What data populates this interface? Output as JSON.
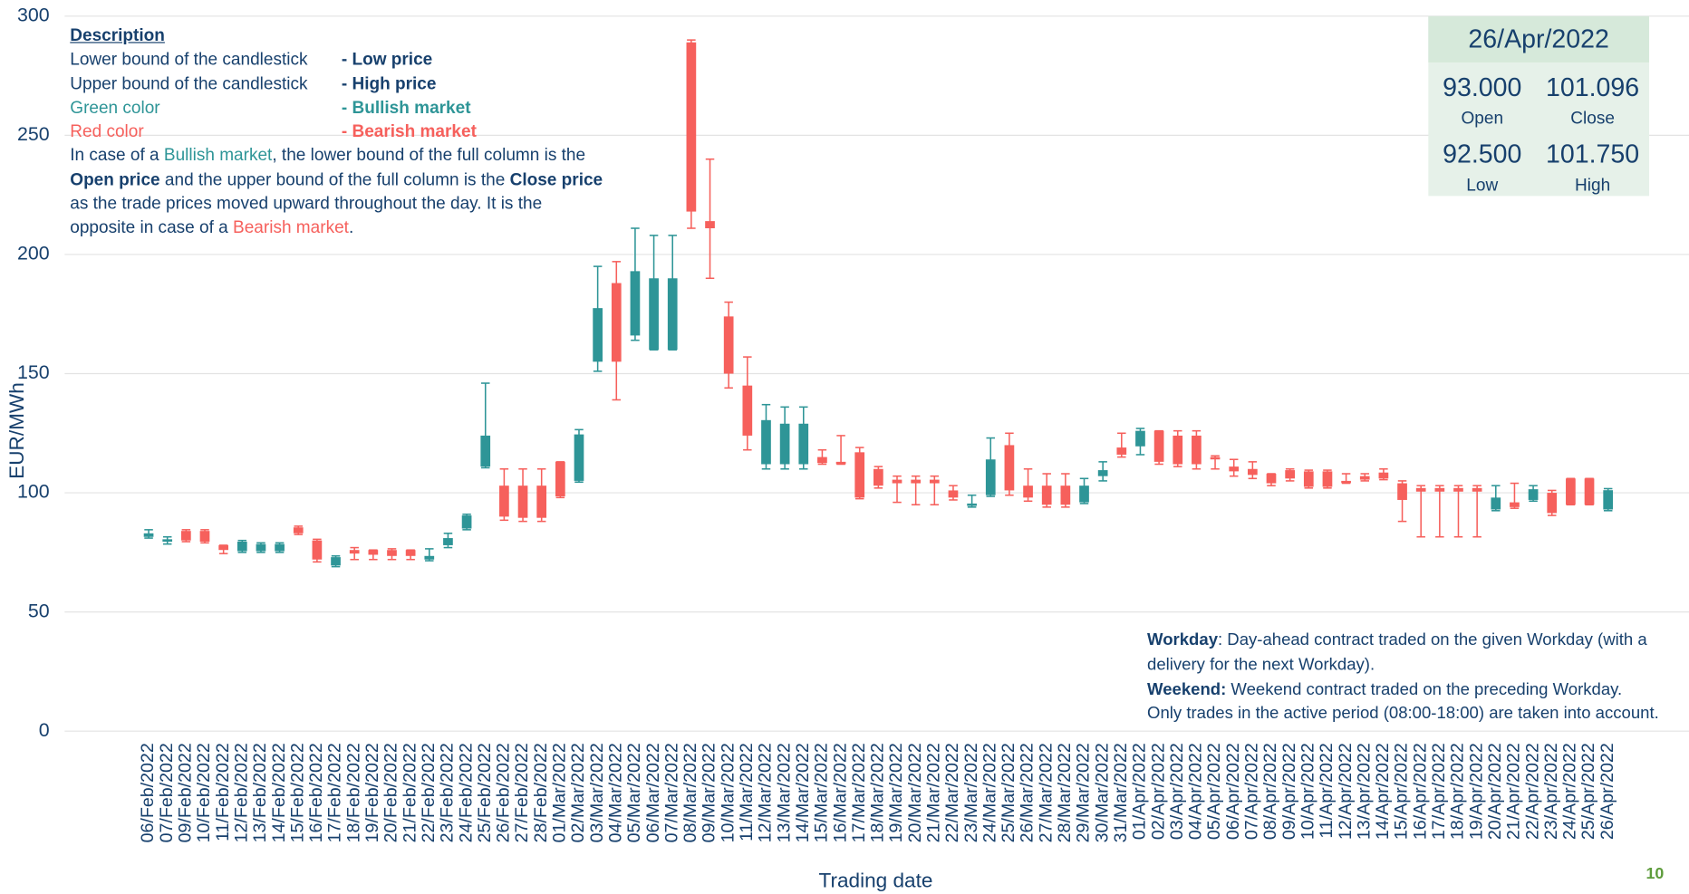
{
  "chart_data": {
    "type": "candlestick",
    "ylabel": "EUR/MWh",
    "xlabel": "Trading date",
    "ylim": [
      0,
      300
    ],
    "yticks": [
      0,
      50,
      100,
      150,
      200,
      250,
      300
    ],
    "grid": true,
    "up_color": "#2e9597",
    "down_color": "#f6605c",
    "x": [
      "06/Feb/2022",
      "07/Feb/2022",
      "09/Feb/2022",
      "10/Feb/2022",
      "11/Feb/2022",
      "12/Feb/2022",
      "13/Feb/2022",
      "14/Feb/2022",
      "15/Feb/2022",
      "16/Feb/2022",
      "17/Feb/2022",
      "18/Feb/2022",
      "19/Feb/2022",
      "20/Feb/2022",
      "21/Feb/2022",
      "22/Feb/2022",
      "23/Feb/2022",
      "24/Feb/2022",
      "25/Feb/2022",
      "26/Feb/2022",
      "27/Feb/2022",
      "28/Feb/2022",
      "01/Mar/2022",
      "02/Mar/2022",
      "03/Mar/2022",
      "04/Mar/2022",
      "05/Mar/2022",
      "06/Mar/2022",
      "07/Mar/2022",
      "08/Mar/2022",
      "09/Mar/2022",
      "10/Mar/2022",
      "11/Mar/2022",
      "12/Mar/2022",
      "13/Mar/2022",
      "14/Mar/2022",
      "15/Mar/2022",
      "16/Mar/2022",
      "17/Mar/2022",
      "18/Mar/2022",
      "19/Mar/2022",
      "20/Mar/2022",
      "21/Mar/2022",
      "22/Mar/2022",
      "23/Mar/2022",
      "24/Mar/2022",
      "25/Mar/2022",
      "26/Mar/2022",
      "27/Mar/2022",
      "28/Mar/2022",
      "29/Mar/2022",
      "30/Mar/2022",
      "31/Mar/2022",
      "01/Apr/2022",
      "02/Apr/2022",
      "03/Apr/2022",
      "04/Apr/2022",
      "05/Apr/2022",
      "06/Apr/2022",
      "07/Apr/2022",
      "08/Apr/2022",
      "09/Apr/2022",
      "10/Apr/2022",
      "11/Apr/2022",
      "12/Apr/2022",
      "13/Apr/2022",
      "14/Apr/2022",
      "15/Apr/2022",
      "16/Apr/2022",
      "17/Apr/2022",
      "18/Apr/2022",
      "19/Apr/2022",
      "20/Apr/2022",
      "21/Apr/2022",
      "22/Apr/2022",
      "23/Apr/2022",
      "24/Apr/2022",
      "25/Apr/2022",
      "26/Apr/2022"
    ],
    "open": [
      81.5,
      79.5,
      84,
      84,
      78,
      75.5,
      75.5,
      75.5,
      85.5,
      80,
      69.5,
      76,
      76,
      76,
      76,
      72,
      78,
      85,
      111,
      103,
      103,
      103,
      113,
      105,
      155,
      188,
      166,
      160,
      160,
      289,
      214,
      174,
      145,
      112,
      112,
      112,
      115,
      113,
      117,
      110,
      105.5,
      105.5,
      105.5,
      101,
      94.5,
      99,
      120,
      103,
      103,
      103,
      96,
      107,
      119,
      119.5,
      126,
      124,
      124,
      115,
      111,
      110,
      108,
      109.5,
      109,
      109,
      105,
      107,
      108.5,
      104,
      102,
      102,
      102,
      102,
      93,
      96,
      97,
      100,
      106,
      106,
      93
    ],
    "high": [
      84.5,
      81.5,
      84.5,
      84.5,
      78,
      80,
      79,
      79,
      86,
      80.5,
      73.5,
      77,
      76,
      76.5,
      76,
      76.5,
      83,
      91,
      146,
      110,
      110,
      110,
      113,
      126.5,
      195,
      197,
      211,
      208,
      208,
      290,
      240,
      180,
      157,
      137,
      136,
      136,
      118,
      124,
      119,
      111,
      107,
      107,
      107,
      103,
      99,
      123,
      125,
      110,
      108,
      108,
      106,
      113,
      125,
      127,
      126,
      126,
      126,
      115.5,
      114,
      113,
      108,
      110,
      109.5,
      109.5,
      108,
      108,
      110,
      105,
      103,
      103,
      103,
      103,
      103,
      104,
      103,
      101,
      106,
      106,
      101.75
    ],
    "low": [
      81,
      78.5,
      79.5,
      79,
      74.5,
      75,
      75,
      75,
      82.5,
      71,
      69,
      72,
      72,
      72,
      72,
      71.5,
      77,
      84.5,
      110.5,
      88.5,
      88,
      88,
      98,
      104.5,
      151,
      139,
      164,
      160,
      160,
      211,
      190,
      144,
      118,
      110,
      110,
      110,
      112,
      112,
      97.5,
      102,
      96,
      95,
      95,
      97,
      94,
      98.5,
      99,
      96.5,
      94,
      94,
      95.5,
      105,
      115,
      116,
      112,
      111,
      110,
      110,
      107,
      106,
      103,
      105,
      102,
      102,
      104,
      105,
      105.5,
      88,
      81.5,
      81.5,
      81.5,
      81.5,
      92.5,
      93.5,
      96.5,
      90.5,
      95,
      95,
      92.5
    ],
    "close": [
      83,
      80.5,
      80,
      79.5,
      76,
      79.5,
      78.5,
      78.5,
      83,
      72,
      73,
      74.5,
      74,
      73.5,
      73.5,
      73.5,
      81,
      90.5,
      124,
      90,
      89.5,
      89.5,
      98.5,
      124.5,
      177.5,
      155,
      193,
      190,
      190,
      218,
      211,
      150,
      124,
      130.5,
      129,
      129,
      112.5,
      112,
      98,
      103,
      104,
      104,
      104,
      98,
      95.5,
      114,
      101,
      98,
      95,
      95,
      103,
      109.5,
      116,
      126,
      113,
      112,
      112,
      114,
      109,
      107.5,
      104,
      106,
      102.5,
      102.5,
      104.5,
      105.5,
      106,
      97,
      100.5,
      100.5,
      100.5,
      100.5,
      98,
      94,
      101.5,
      91.5,
      95,
      95,
      101.096
    ]
  },
  "description": {
    "title": "Description",
    "rows": [
      {
        "label": "Lower bound of the candlestick",
        "value": "- Low price"
      },
      {
        "label": "Upper bound of the candlestick",
        "value": "- High price"
      },
      {
        "label": "Green color",
        "value": "- Bullish market"
      },
      {
        "label": "Red color",
        "value": "- Bearish market"
      }
    ],
    "paragraph": [
      "In case of a ",
      "Bullish market",
      ", the lower bound of the full column is the ",
      "Open price",
      " and the upper bound of the full column is the ",
      "Close price",
      " as the trade prices moved upward throughout the day. It is the opposite in case of a ",
      "Bearish market",
      "."
    ]
  },
  "info": {
    "date": "26/Apr/2022",
    "open": "93.000",
    "open_label": "Open",
    "close": "101.096",
    "close_label": "Close",
    "low": "92.500",
    "low_label": "Low",
    "high": "101.750",
    "high_label": "High"
  },
  "footnote": [
    "Workday",
    ": Day-ahead contract traded on the given Workday (with a delivery for the next Workday).",
    "Weekend:",
    " Weekend contract traded on the preceding Workday.",
    "Only trades in the active period (08:00-18:00) are taken into account."
  ],
  "page_number": "10"
}
